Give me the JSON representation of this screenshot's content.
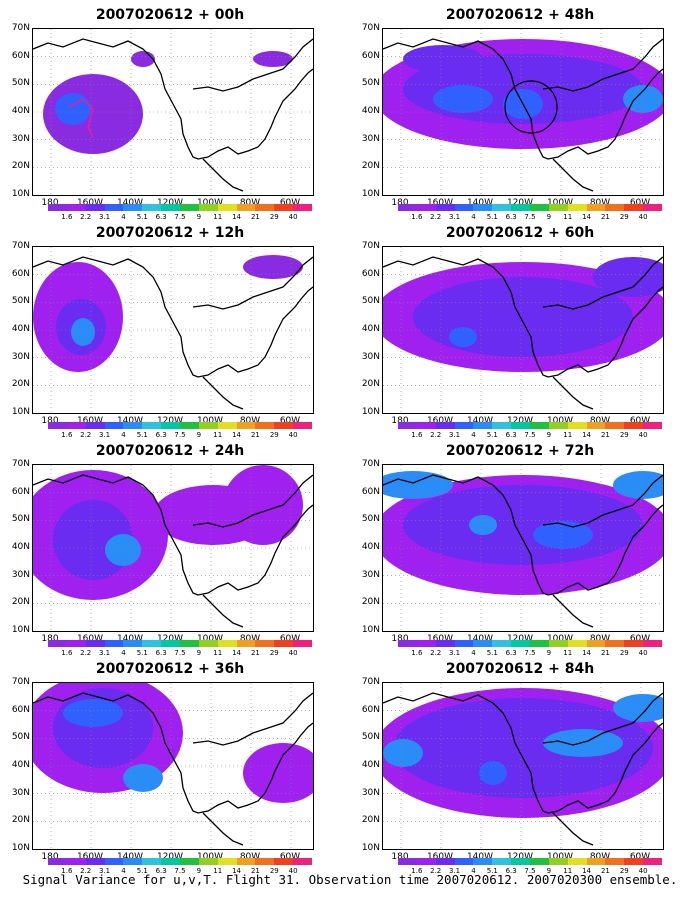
{
  "footer": "Signal Variance for u,v,T. Flight 31. Observation time 2007020612. 2007020300 ensemble.",
  "chart_data": {
    "type": "heatmap",
    "panels": [
      {
        "title": "2007020612 + 00h"
      },
      {
        "title": "2007020612 + 48h"
      },
      {
        "title": "2007020612 + 12h"
      },
      {
        "title": "2007020612 + 60h"
      },
      {
        "title": "2007020612 + 24h"
      },
      {
        "title": "2007020612 + 72h"
      },
      {
        "title": "2007020612 + 36h"
      },
      {
        "title": "2007020612 + 84h"
      }
    ],
    "lat_ticks": [
      "70N",
      "60N",
      "50N",
      "40N",
      "30N",
      "20N",
      "10N"
    ],
    "lon_ticks": [
      "180",
      "160W",
      "140W",
      "120W",
      "100W",
      "80W",
      "60W"
    ],
    "colorbar": {
      "labels": [
        "1.6",
        "2.2",
        "3.1",
        "4",
        "5.1",
        "6.3",
        "7.5",
        "9",
        "11",
        "14",
        "21",
        "29",
        "40"
      ],
      "colors": [
        "#8a2be2",
        "#a020f0",
        "#6a2cf0",
        "#3060ff",
        "#2a8cf6",
        "#30c0e0",
        "#00c8a0",
        "#20c040",
        "#90d020",
        "#e0e020",
        "#f0a020",
        "#f07020",
        "#f04020",
        "#f0207f"
      ]
    }
  }
}
